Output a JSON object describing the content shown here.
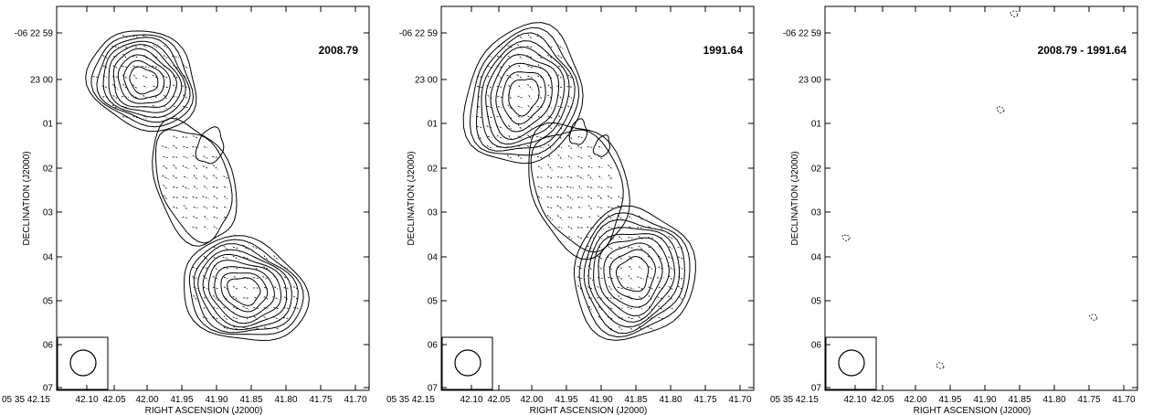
{
  "figure": {
    "xlabel": "RIGHT ASCENSION (J2000)",
    "ylabel": "DECLINATION (J2000)",
    "x_ticks": [
      "05 35 42.15",
      "42.10",
      "42.05",
      "42.00",
      "41.95",
      "41.90",
      "41.85",
      "41.80",
      "41.75",
      "41.70"
    ],
    "y_ticks": [
      "-06 22 59",
      "23 00",
      "01",
      "02",
      "03",
      "04",
      "05",
      "06",
      "07"
    ],
    "colors": {
      "contour": "#000000",
      "frame": "#000000",
      "background": "#ffffff"
    }
  },
  "panels": [
    {
      "id": "panel-2008",
      "epoch": "2008.79",
      "has_source": true,
      "variant": "a"
    },
    {
      "id": "panel-1991",
      "epoch": "1991.64",
      "has_source": true,
      "variant": "b"
    },
    {
      "id": "panel-diff",
      "epoch": "2008.79 - 1991.64",
      "has_source": false,
      "variant": "c"
    }
  ]
}
